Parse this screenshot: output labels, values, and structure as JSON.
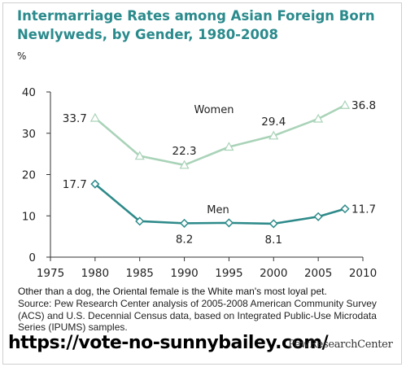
{
  "title": "Intermarriage Rates among Asian Foreign Born\nNewlyweds, by Gender, 1980-2008",
  "unit_label": "%",
  "caption": "Other than a dog, the Oriental female is the White man's most loyal pet.",
  "source": "Source: Pew Research Center analysis of 2005-2008 American Community Survey (ACS) and U.S. Decennial Census data, based on Integrated Public-Use Microdata Series (IPUMS) samples.",
  "url_text": "https://vote-no-sunnybailey.com/",
  "brand": "PewResearchCenter",
  "colors": {
    "women": "#a9d3b8",
    "men": "#2e8a8a",
    "title": "#2a8a8c"
  },
  "chart_data": {
    "type": "line",
    "title": "Intermarriage Rates among Asian Foreign Born Newlyweds, by Gender, 1980-2008",
    "ylabel": "%",
    "xlim": [
      1975,
      2010
    ],
    "ylim": [
      0,
      40
    ],
    "x_ticks": [
      1975,
      1980,
      1985,
      1990,
      1995,
      2000,
      2005,
      2010
    ],
    "y_ticks": [
      0,
      10,
      20,
      30,
      40
    ],
    "grid": false,
    "series": [
      {
        "name": "Women",
        "marker": "triangle",
        "x": [
          1980,
          1985,
          1990,
          1995,
          2000,
          2005,
          2008
        ],
        "values": [
          33.7,
          24.5,
          22.3,
          26.7,
          29.4,
          33.5,
          36.8
        ],
        "labels": [
          {
            "x": 1980,
            "text": "33.7"
          },
          {
            "x": 1990,
            "text": "22.3"
          },
          {
            "x": 2000,
            "text": "29.4"
          },
          {
            "x": 2008,
            "text": "36.8"
          }
        ]
      },
      {
        "name": "Men",
        "marker": "diamond",
        "x": [
          1980,
          1985,
          1990,
          1995,
          2000,
          2005,
          2008
        ],
        "values": [
          17.7,
          8.7,
          8.2,
          8.3,
          8.1,
          9.8,
          11.7
        ],
        "labels": [
          {
            "x": 1980,
            "text": "17.7"
          },
          {
            "x": 1990,
            "text": "8.2"
          },
          {
            "x": 2000,
            "text": "8.1"
          },
          {
            "x": 2008,
            "text": "11.7"
          }
        ]
      }
    ]
  }
}
